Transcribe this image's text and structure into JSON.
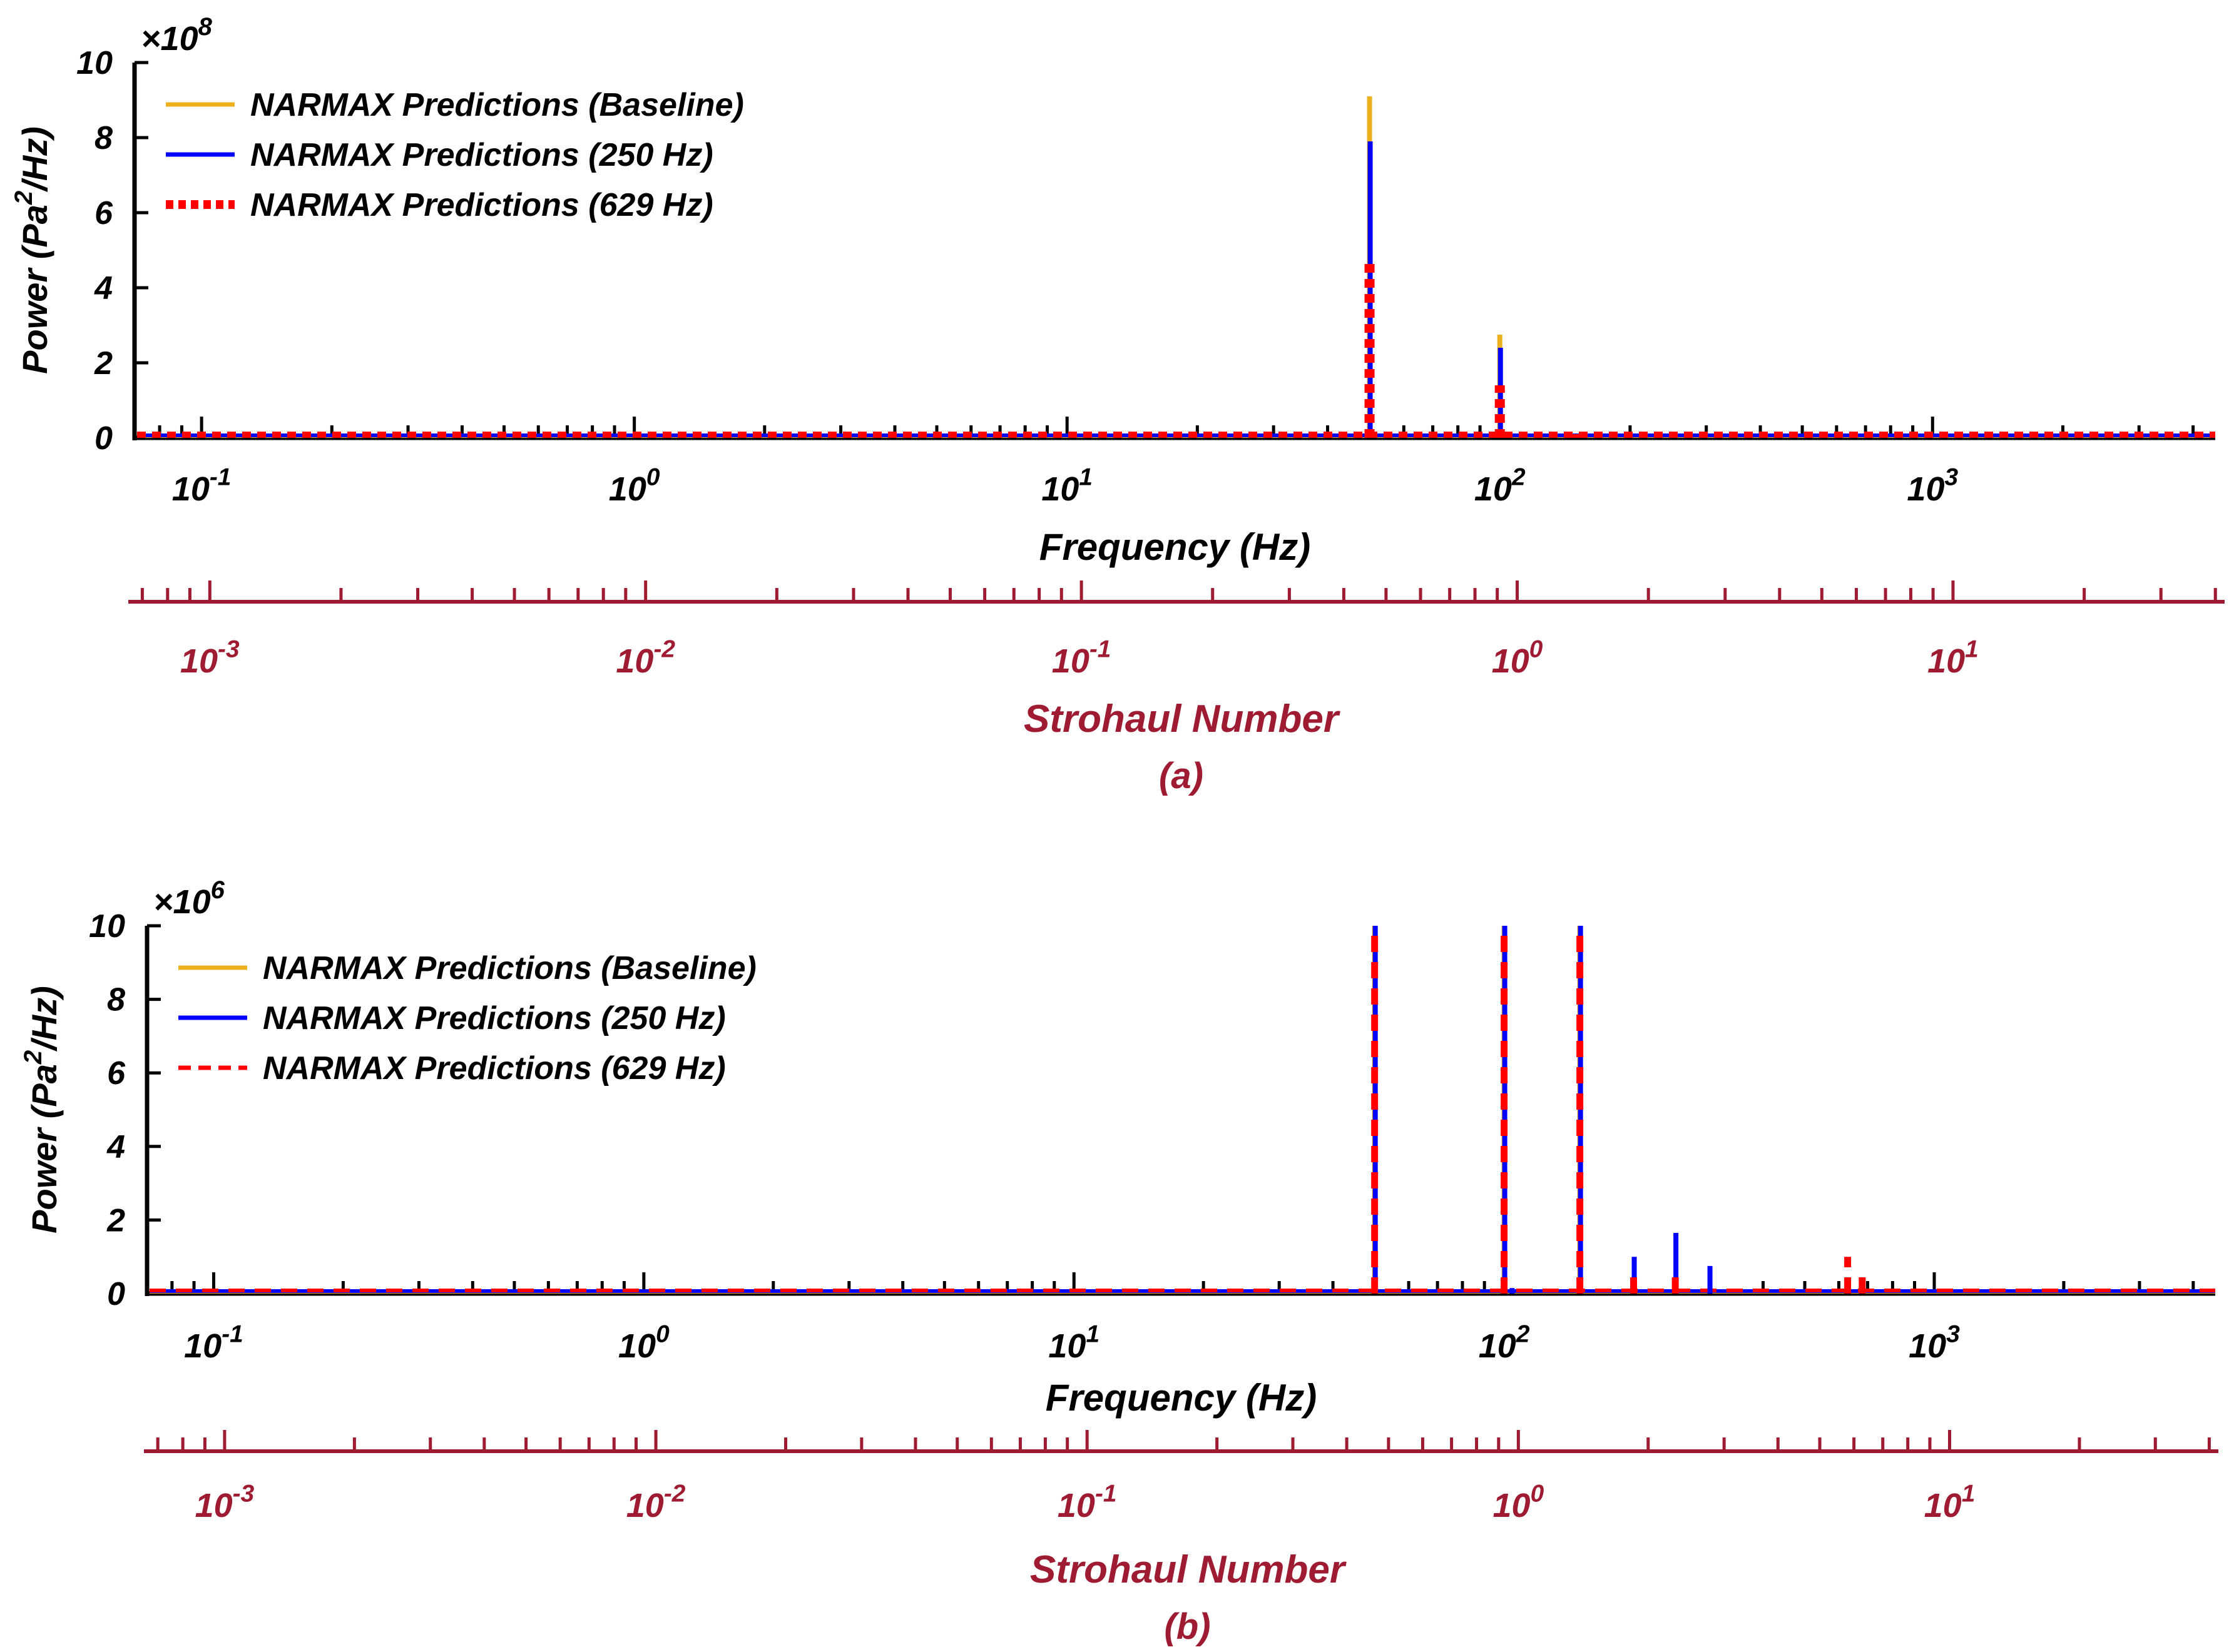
{
  "chart_data": [
    {
      "type": "line",
      "panel_label": "(a)",
      "xlabel": "Frequency (Hz)",
      "ylabel_main": "Power (Pa",
      "ylabel_sup": "2",
      "ylabel_end": "/Hz)",
      "y_multiplier_base": "×10",
      "y_multiplier_exp": "8",
      "xscale": "log",
      "xlim": [
        0.07,
        4500
      ],
      "ylim": [
        0,
        10
      ],
      "yticks": [
        "0",
        "2",
        "4",
        "6",
        "8",
        "10"
      ],
      "xticks": [
        {
          "base": "10",
          "exp": "-1",
          "value": 0.1
        },
        {
          "base": "10",
          "exp": "0",
          "value": 1
        },
        {
          "base": "10",
          "exp": "1",
          "value": 10
        },
        {
          "base": "10",
          "exp": "2",
          "value": 100
        },
        {
          "base": "10",
          "exp": "3",
          "value": 1000
        }
      ],
      "secondary_axis": {
        "label": "Strohaul Number",
        "xlim": [
          0.00065,
          42
        ],
        "ticks": [
          {
            "base": "10",
            "exp": "-3",
            "value": 0.001
          },
          {
            "base": "10",
            "exp": "-2",
            "value": 0.01
          },
          {
            "base": "10",
            "exp": "-1",
            "value": 0.1
          },
          {
            "base": "10",
            "exp": "0",
            "value": 1
          },
          {
            "base": "10",
            "exp": "1",
            "value": 10
          }
        ]
      },
      "legend_position": "top-left",
      "series": [
        {
          "name": "NARMAX Predictions (Baseline)",
          "color": "#EDB120",
          "style": "solid",
          "peaks": [
            {
              "x": 50,
              "y": 9.1
            },
            {
              "x": 100,
              "y": 2.75
            }
          ]
        },
        {
          "name": "NARMAX Predictions (250 Hz)",
          "color": "#0000FF",
          "style": "solid",
          "peaks": [
            {
              "x": 50,
              "y": 7.9
            },
            {
              "x": 100,
              "y": 2.4
            }
          ]
        },
        {
          "name": "NARMAX Predictions (629 Hz)",
          "color": "#FF0000",
          "style": "dotted",
          "peaks": [
            {
              "x": 50,
              "y": 4.8
            },
            {
              "x": 100,
              "y": 1.4
            },
            {
              "x": 150,
              "y": 0.1
            }
          ]
        }
      ]
    },
    {
      "type": "line",
      "panel_label": "(b)",
      "xlabel": "Frequency (Hz)",
      "ylabel_main": "Power (Pa",
      "ylabel_sup": "2",
      "ylabel_end": "/Hz)",
      "y_multiplier_base": "×10",
      "y_multiplier_exp": "6",
      "xscale": "log",
      "xlim": [
        0.07,
        4500
      ],
      "ylim": [
        0,
        10
      ],
      "yticks": [
        "0",
        "2",
        "4",
        "6",
        "8",
        "10"
      ],
      "xticks": [
        {
          "base": "10",
          "exp": "-1",
          "value": 0.1
        },
        {
          "base": "10",
          "exp": "0",
          "value": 1
        },
        {
          "base": "10",
          "exp": "1",
          "value": 10
        },
        {
          "base": "10",
          "exp": "2",
          "value": 100
        },
        {
          "base": "10",
          "exp": "3",
          "value": 1000
        }
      ],
      "secondary_axis": {
        "label": "Strohaul Number",
        "xlim": [
          0.00065,
          42
        ],
        "ticks": [
          {
            "base": "10",
            "exp": "-3",
            "value": 0.001
          },
          {
            "base": "10",
            "exp": "-2",
            "value": 0.01
          },
          {
            "base": "10",
            "exp": "-1",
            "value": 0.1
          },
          {
            "base": "10",
            "exp": "0",
            "value": 1
          },
          {
            "base": "10",
            "exp": "1",
            "value": 10
          }
        ]
      },
      "legend_position": "top-left",
      "series": [
        {
          "name": "NARMAX Predictions (Baseline)",
          "color": "#EDB120",
          "style": "solid",
          "peaks": [
            {
              "x": 50,
              "y": 10
            },
            {
              "x": 100,
              "y": 10
            },
            {
              "x": 150,
              "y": 10
            }
          ]
        },
        {
          "name": "NARMAX Predictions (250 Hz)",
          "color": "#0000FF",
          "style": "solid",
          "peaks": [
            {
              "x": 50,
              "y": 10
            },
            {
              "x": 100,
              "y": 10
            },
            {
              "x": 150,
              "y": 10
            },
            {
              "x": 200,
              "y": 1.0
            },
            {
              "x": 250,
              "y": 1.65
            },
            {
              "x": 300,
              "y": 0.75
            },
            {
              "x": 104,
              "y": 0.15
            }
          ]
        },
        {
          "name": "NARMAX Predictions (629 Hz)",
          "color": "#FF0000",
          "style": "dashed",
          "peaks": [
            {
              "x": 50,
              "y": 10
            },
            {
              "x": 100,
              "y": 10
            },
            {
              "x": 150,
              "y": 10
            },
            {
              "x": 200,
              "y": 0.6
            },
            {
              "x": 250,
              "y": 0.5
            },
            {
              "x": 629,
              "y": 1.0
            },
            {
              "x": 680,
              "y": 0.45
            }
          ]
        }
      ]
    }
  ]
}
